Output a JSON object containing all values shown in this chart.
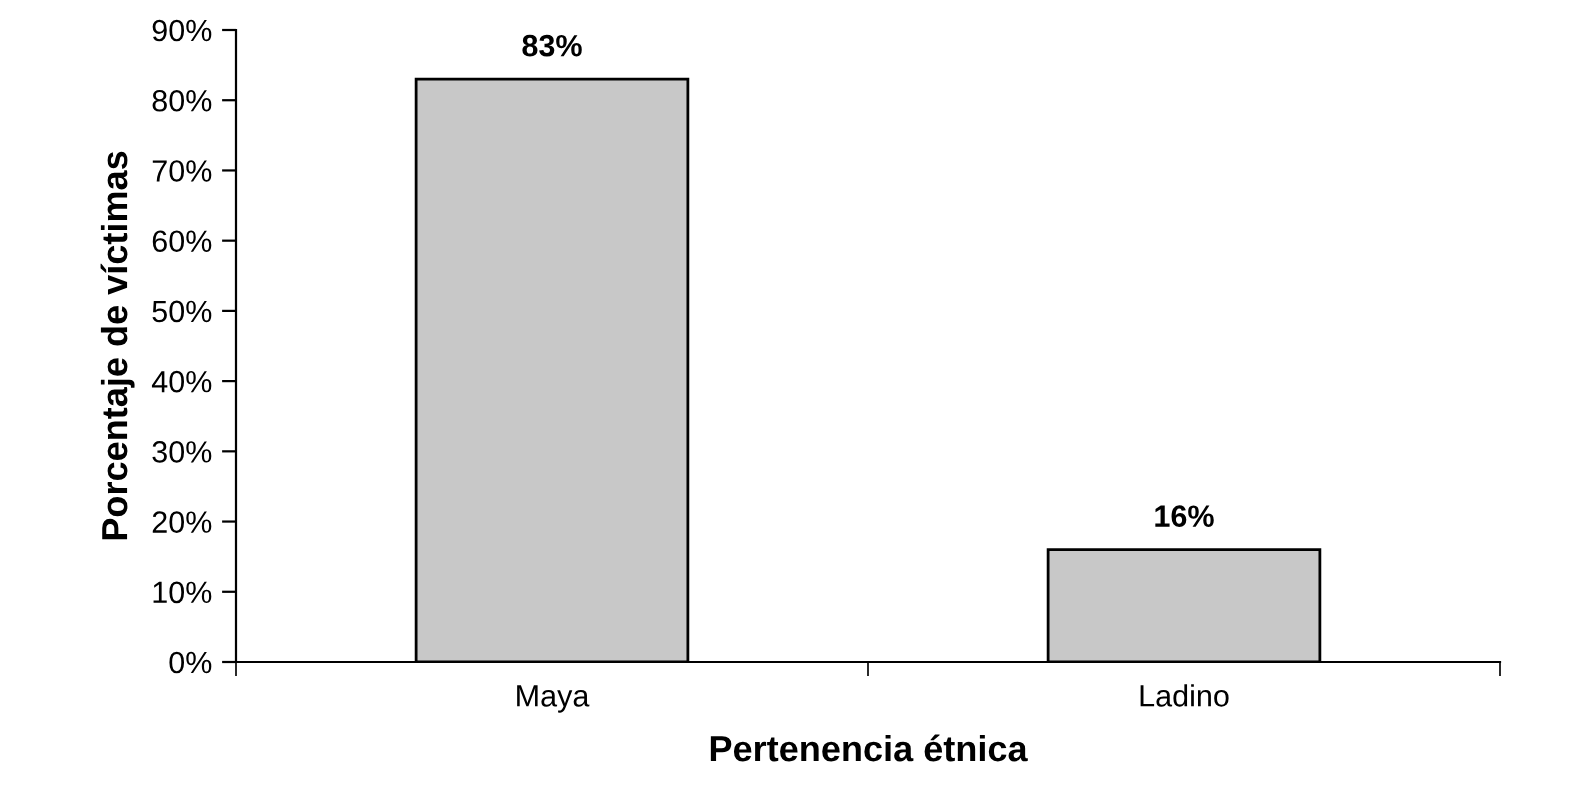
{
  "chart_data": {
    "type": "bar",
    "xlabel": "Pertenencia étnica",
    "ylabel": "Porcentaje de víctimas",
    "categories": [
      "Maya",
      "Ladino"
    ],
    "values": [
      83,
      16
    ],
    "value_labels": [
      "83%",
      "16%"
    ],
    "color": "#c8c8c8",
    "ylim": [
      0,
      90
    ],
    "yticks": [
      {
        "value": 0,
        "label": "0%"
      },
      {
        "value": 10,
        "label": "10%"
      },
      {
        "value": 20,
        "label": "20%"
      },
      {
        "value": 30,
        "label": "30%"
      },
      {
        "value": 40,
        "label": "40%"
      },
      {
        "value": 50,
        "label": "50%"
      },
      {
        "value": 60,
        "label": "60%"
      },
      {
        "value": 70,
        "label": "70%"
      },
      {
        "value": 80,
        "label": "80%"
      },
      {
        "value": 90,
        "label": "90%"
      }
    ],
    "grid": false,
    "legend": false
  }
}
